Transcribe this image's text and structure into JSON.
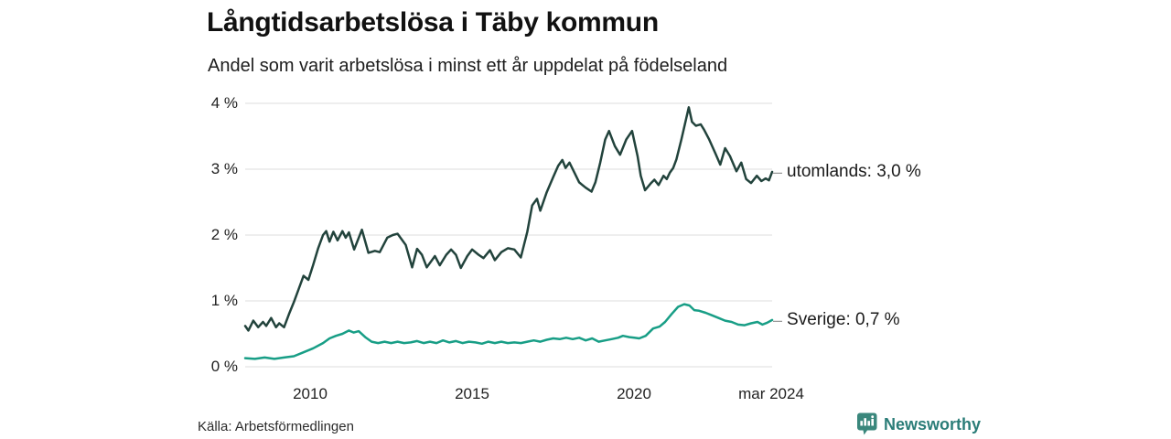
{
  "header": {
    "title": "Långtidsarbetslösa i Täby kommun",
    "subtitle": "Andel som varit arbetslösa i minst ett år uppdelat på födelseland"
  },
  "footer": {
    "source": "Källa: Arbetsförmedlingen",
    "brand": "Newsworthy",
    "brand_color": "#2b7d78"
  },
  "chart_data": {
    "type": "line",
    "title": "Långtidsarbetslösa i Täby kommun",
    "subtitle": "Andel som varit arbetslösa i minst ett år uppdelat på födelseland",
    "xlabel": "",
    "ylabel": "",
    "x_range": [
      2008,
      2024.25
    ],
    "y_range": [
      0,
      4
    ],
    "grid": "horizontal",
    "grid_color": "#dddddd",
    "legend_position": "right-of-line-end",
    "yticks": [
      {
        "label": "0 %",
        "value": 0
      },
      {
        "label": "1 %",
        "value": 1
      },
      {
        "label": "2 %",
        "value": 2
      },
      {
        "label": "3 %",
        "value": 3
      },
      {
        "label": "4 %",
        "value": 4
      }
    ],
    "xticks": [
      {
        "label": "2010",
        "value": 2010
      },
      {
        "label": "2015",
        "value": 2015
      },
      {
        "label": "2020",
        "value": 2020
      },
      {
        "label": "mar 2024",
        "value": 2024.25
      }
    ],
    "series": [
      {
        "name": "utomlands",
        "label": "utomlands: 3,0 %",
        "last_value": "3,0 %",
        "color": "#22433c",
        "points": [
          [
            2008.0,
            0.62
          ],
          [
            2008.1,
            0.55
          ],
          [
            2008.25,
            0.7
          ],
          [
            2008.4,
            0.6
          ],
          [
            2008.55,
            0.68
          ],
          [
            2008.65,
            0.62
          ],
          [
            2008.8,
            0.74
          ],
          [
            2008.95,
            0.6
          ],
          [
            2009.05,
            0.66
          ],
          [
            2009.2,
            0.6
          ],
          [
            2009.35,
            0.8
          ],
          [
            2009.5,
            0.98
          ],
          [
            2009.65,
            1.18
          ],
          [
            2009.8,
            1.38
          ],
          [
            2009.95,
            1.32
          ],
          [
            2010.1,
            1.55
          ],
          [
            2010.25,
            1.8
          ],
          [
            2010.4,
            2.0
          ],
          [
            2010.5,
            2.06
          ],
          [
            2010.6,
            1.9
          ],
          [
            2010.72,
            2.05
          ],
          [
            2010.85,
            1.92
          ],
          [
            2011.0,
            2.06
          ],
          [
            2011.1,
            1.96
          ],
          [
            2011.2,
            2.04
          ],
          [
            2011.36,
            1.78
          ],
          [
            2011.6,
            2.08
          ],
          [
            2011.8,
            1.73
          ],
          [
            2012.0,
            1.76
          ],
          [
            2012.15,
            1.74
          ],
          [
            2012.38,
            1.96
          ],
          [
            2012.55,
            2.0
          ],
          [
            2012.7,
            2.02
          ],
          [
            2012.95,
            1.85
          ],
          [
            2013.15,
            1.51
          ],
          [
            2013.3,
            1.79
          ],
          [
            2013.45,
            1.7
          ],
          [
            2013.6,
            1.51
          ],
          [
            2013.85,
            1.68
          ],
          [
            2014.0,
            1.54
          ],
          [
            2014.2,
            1.7
          ],
          [
            2014.35,
            1.78
          ],
          [
            2014.5,
            1.7
          ],
          [
            2014.65,
            1.5
          ],
          [
            2014.85,
            1.68
          ],
          [
            2015.0,
            1.78
          ],
          [
            2015.2,
            1.7
          ],
          [
            2015.35,
            1.65
          ],
          [
            2015.55,
            1.77
          ],
          [
            2015.7,
            1.62
          ],
          [
            2015.9,
            1.74
          ],
          [
            2016.1,
            1.8
          ],
          [
            2016.3,
            1.78
          ],
          [
            2016.5,
            1.66
          ],
          [
            2016.7,
            2.05
          ],
          [
            2016.85,
            2.45
          ],
          [
            2017.0,
            2.55
          ],
          [
            2017.1,
            2.37
          ],
          [
            2017.3,
            2.65
          ],
          [
            2017.5,
            2.88
          ],
          [
            2017.65,
            3.05
          ],
          [
            2017.78,
            3.14
          ],
          [
            2017.88,
            3.02
          ],
          [
            2018.0,
            3.1
          ],
          [
            2018.15,
            2.95
          ],
          [
            2018.3,
            2.8
          ],
          [
            2018.5,
            2.72
          ],
          [
            2018.68,
            2.66
          ],
          [
            2018.8,
            2.8
          ],
          [
            2018.95,
            3.1
          ],
          [
            2019.1,
            3.45
          ],
          [
            2019.22,
            3.58
          ],
          [
            2019.4,
            3.35
          ],
          [
            2019.56,
            3.22
          ],
          [
            2019.75,
            3.45
          ],
          [
            2019.93,
            3.58
          ],
          [
            2020.1,
            3.2
          ],
          [
            2020.2,
            2.9
          ],
          [
            2020.33,
            2.68
          ],
          [
            2020.5,
            2.78
          ],
          [
            2020.62,
            2.84
          ],
          [
            2020.75,
            2.76
          ],
          [
            2020.9,
            2.9
          ],
          [
            2021.0,
            2.85
          ],
          [
            2021.1,
            2.95
          ],
          [
            2021.2,
            3.02
          ],
          [
            2021.3,
            3.15
          ],
          [
            2021.45,
            3.45
          ],
          [
            2021.68,
            3.94
          ],
          [
            2021.78,
            3.72
          ],
          [
            2021.9,
            3.66
          ],
          [
            2022.05,
            3.68
          ],
          [
            2022.15,
            3.6
          ],
          [
            2022.3,
            3.46
          ],
          [
            2022.5,
            3.24
          ],
          [
            2022.65,
            3.07
          ],
          [
            2022.8,
            3.32
          ],
          [
            2022.95,
            3.2
          ],
          [
            2023.15,
            2.97
          ],
          [
            2023.3,
            3.1
          ],
          [
            2023.45,
            2.85
          ],
          [
            2023.6,
            2.79
          ],
          [
            2023.78,
            2.9
          ],
          [
            2023.92,
            2.82
          ],
          [
            2024.05,
            2.86
          ],
          [
            2024.15,
            2.83
          ],
          [
            2024.25,
            2.96
          ]
        ]
      },
      {
        "name": "Sverige",
        "label": "Sverige: 0,7 %",
        "last_value": "0,7 %",
        "color": "#189e86",
        "points": [
          [
            2008.0,
            0.13
          ],
          [
            2008.3,
            0.12
          ],
          [
            2008.6,
            0.14
          ],
          [
            2008.9,
            0.12
          ],
          [
            2009.2,
            0.14
          ],
          [
            2009.5,
            0.16
          ],
          [
            2009.8,
            0.22
          ],
          [
            2010.1,
            0.28
          ],
          [
            2010.4,
            0.36
          ],
          [
            2010.6,
            0.43
          ],
          [
            2010.8,
            0.47
          ],
          [
            2011.0,
            0.5
          ],
          [
            2011.2,
            0.55
          ],
          [
            2011.35,
            0.52
          ],
          [
            2011.5,
            0.54
          ],
          [
            2011.7,
            0.45
          ],
          [
            2011.9,
            0.38
          ],
          [
            2012.1,
            0.36
          ],
          [
            2012.3,
            0.38
          ],
          [
            2012.5,
            0.36
          ],
          [
            2012.7,
            0.38
          ],
          [
            2012.9,
            0.36
          ],
          [
            2013.1,
            0.37
          ],
          [
            2013.3,
            0.39
          ],
          [
            2013.5,
            0.36
          ],
          [
            2013.7,
            0.38
          ],
          [
            2013.9,
            0.36
          ],
          [
            2014.1,
            0.4
          ],
          [
            2014.3,
            0.37
          ],
          [
            2014.5,
            0.39
          ],
          [
            2014.7,
            0.36
          ],
          [
            2014.9,
            0.38
          ],
          [
            2015.1,
            0.37
          ],
          [
            2015.3,
            0.35
          ],
          [
            2015.5,
            0.38
          ],
          [
            2015.7,
            0.36
          ],
          [
            2015.9,
            0.38
          ],
          [
            2016.1,
            0.36
          ],
          [
            2016.3,
            0.37
          ],
          [
            2016.5,
            0.36
          ],
          [
            2016.7,
            0.38
          ],
          [
            2016.9,
            0.4
          ],
          [
            2017.1,
            0.38
          ],
          [
            2017.3,
            0.41
          ],
          [
            2017.5,
            0.43
          ],
          [
            2017.7,
            0.42
          ],
          [
            2017.9,
            0.44
          ],
          [
            2018.1,
            0.42
          ],
          [
            2018.3,
            0.44
          ],
          [
            2018.5,
            0.4
          ],
          [
            2018.7,
            0.43
          ],
          [
            2018.9,
            0.38
          ],
          [
            2019.1,
            0.4
          ],
          [
            2019.3,
            0.42
          ],
          [
            2019.5,
            0.44
          ],
          [
            2019.65,
            0.47
          ],
          [
            2019.85,
            0.45
          ],
          [
            2020.0,
            0.44
          ],
          [
            2020.15,
            0.43
          ],
          [
            2020.35,
            0.47
          ],
          [
            2020.58,
            0.58
          ],
          [
            2020.78,
            0.61
          ],
          [
            2020.95,
            0.68
          ],
          [
            2021.15,
            0.8
          ],
          [
            2021.35,
            0.91
          ],
          [
            2021.54,
            0.95
          ],
          [
            2021.7,
            0.93
          ],
          [
            2021.85,
            0.86
          ],
          [
            2022.0,
            0.85
          ],
          [
            2022.2,
            0.82
          ],
          [
            2022.4,
            0.78
          ],
          [
            2022.6,
            0.74
          ],
          [
            2022.8,
            0.7
          ],
          [
            2023.0,
            0.68
          ],
          [
            2023.2,
            0.64
          ],
          [
            2023.4,
            0.63
          ],
          [
            2023.6,
            0.66
          ],
          [
            2023.8,
            0.68
          ],
          [
            2023.95,
            0.64
          ],
          [
            2024.1,
            0.67
          ],
          [
            2024.25,
            0.71
          ]
        ]
      }
    ]
  }
}
